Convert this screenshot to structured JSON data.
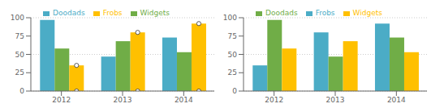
{
  "chart_data": [
    {
      "type": "bar",
      "categories": [
        "2012",
        "2013",
        "2014"
      ],
      "series": [
        {
          "name": "Doodads",
          "color": "#4bacc6",
          "values": [
            97,
            47,
            73
          ]
        },
        {
          "name": "Widgets",
          "color": "#70ad47",
          "values": [
            58,
            68,
            53
          ]
        },
        {
          "name": "Frobs",
          "color": "#ffc000",
          "values": [
            35,
            80,
            92
          ],
          "marker": "circle"
        }
      ],
      "ylim": [
        0,
        100
      ],
      "yticks": [
        0,
        25,
        50,
        75,
        100
      ],
      "grid": true,
      "legend": "top"
    },
    {
      "type": "bar",
      "categories": [
        "2012",
        "2013",
        "2014"
      ],
      "series": [
        {
          "name": "Frobs",
          "color": "#4bacc6",
          "values": [
            35,
            80,
            92
          ]
        },
        {
          "name": "Doodads",
          "color": "#70ad47",
          "values": [
            97,
            47,
            73
          ]
        },
        {
          "name": "Widgets",
          "color": "#ffc000",
          "values": [
            58,
            68,
            53
          ]
        }
      ],
      "ylim": [
        0,
        100
      ],
      "yticks": [
        0,
        25,
        50,
        75,
        100
      ],
      "grid": true,
      "legend": "top"
    }
  ]
}
